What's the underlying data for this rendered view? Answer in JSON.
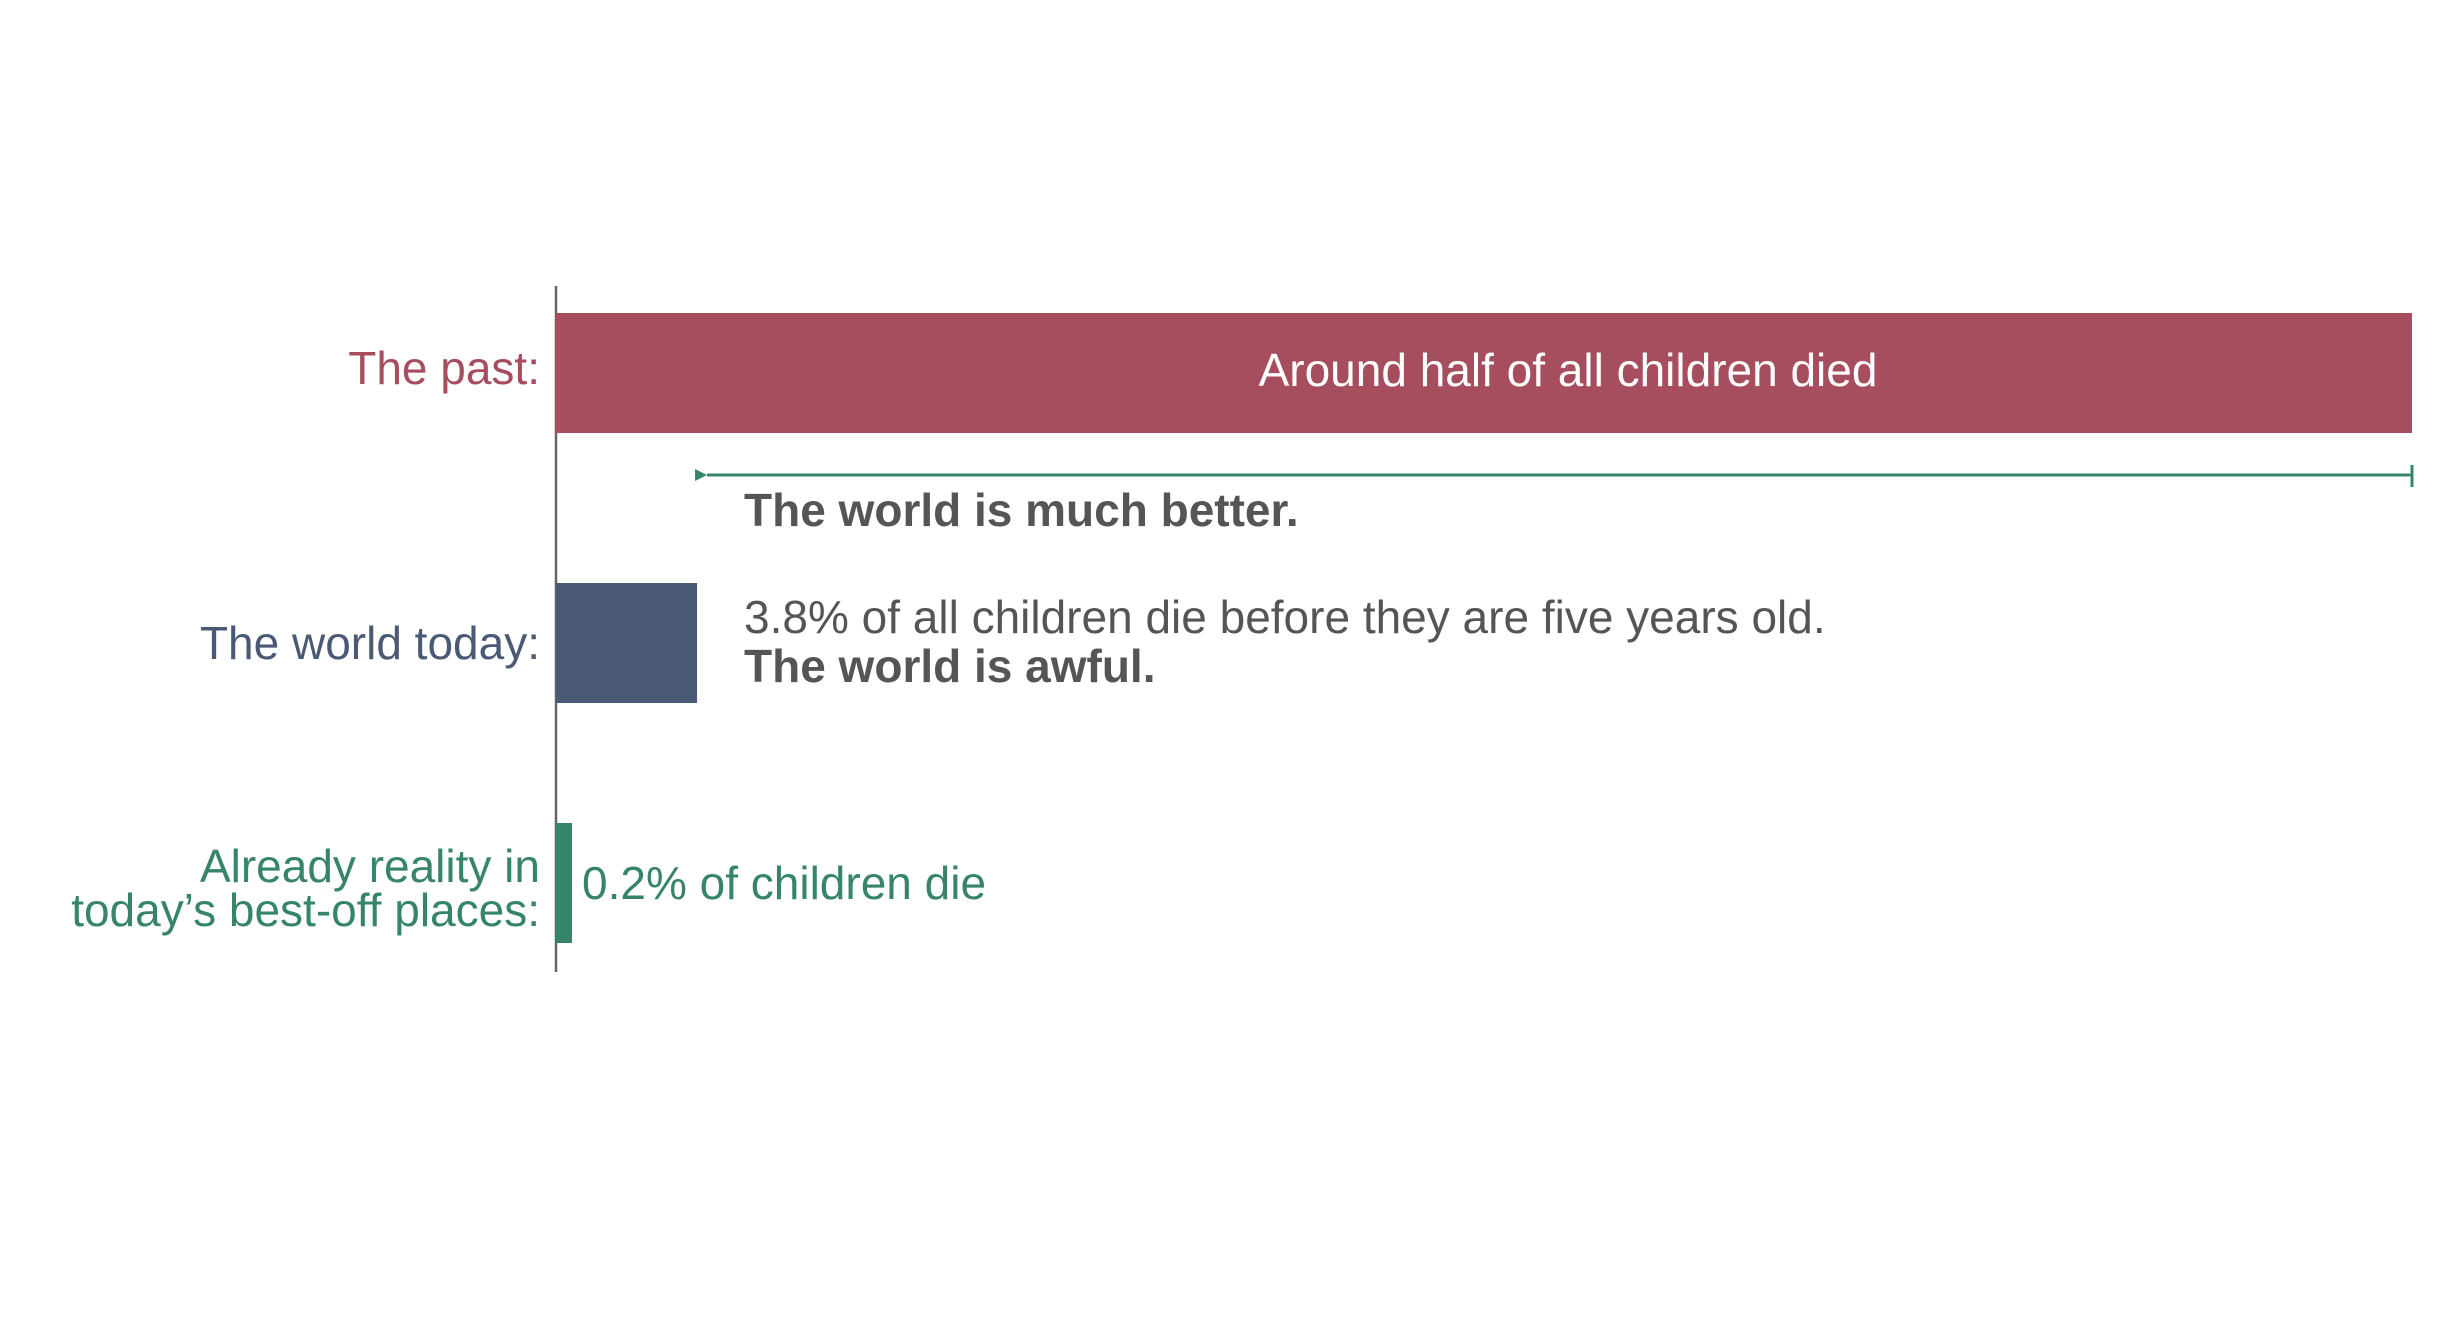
{
  "chart_data": {
    "type": "bar",
    "orientation": "horizontal",
    "categories": [
      "The past:",
      "The world today:",
      "Already reality in today’s best-off places:"
    ],
    "category_label_lines": [
      [
        "The past:"
      ],
      [
        "The world today:"
      ],
      [
        "Already reality in",
        "today’s best-off places:"
      ]
    ],
    "values": [
      50,
      3.8,
      0.2
    ],
    "unit": "% of children die before age 5",
    "xlim": [
      0,
      50
    ],
    "axis_visible": false,
    "grid": false,
    "colors": [
      "#a64d5e",
      "#4a5a75",
      "#36856b"
    ],
    "bar_labels": [
      {
        "text": "Around half of all children died",
        "position": "inside",
        "color": "#ffffff"
      },
      {
        "text": "3.8% of all children die before they are five years old.",
        "position": "outside",
        "color": "#555555"
      },
      {
        "text": "0.2% of children die",
        "position": "outside",
        "color": "#36856b"
      }
    ],
    "annotations": [
      {
        "text": "The world is much better.",
        "bold": true,
        "color": "#555555",
        "arrow_color": "#36856b",
        "from_value": 50,
        "to_value": 3.8
      },
      {
        "text": "The world is awful.",
        "bold": true,
        "color": "#555555"
      }
    ]
  }
}
